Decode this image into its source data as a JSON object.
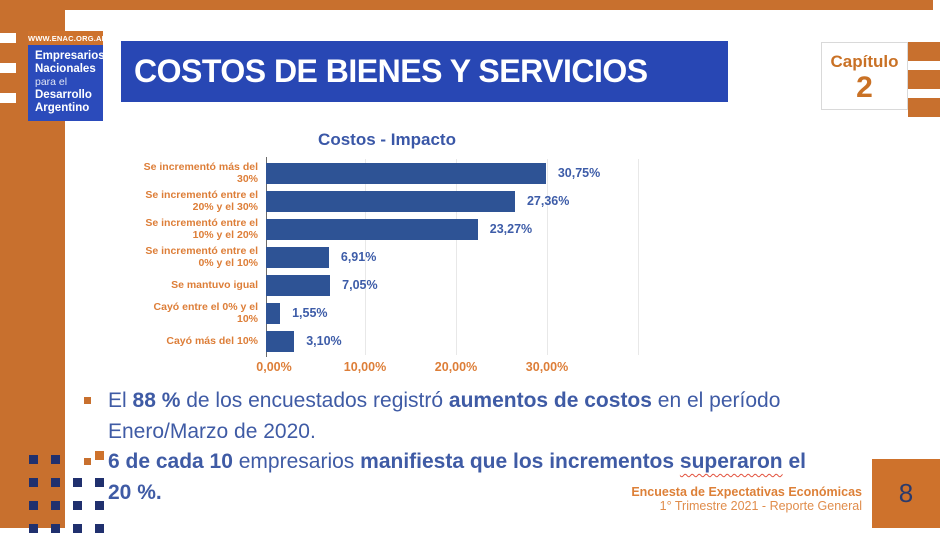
{
  "header": {
    "logo": {
      "url": "WWW.ENAC.ORG.AR",
      "lines": [
        "Empresarios",
        "Nacionales",
        "para el",
        "Desarrollo",
        "Argentino"
      ]
    },
    "title": "COSTOS DE BIENES Y SERVICIOS",
    "chapter": {
      "label": "Capítulo",
      "number": "2"
    }
  },
  "chart_data": {
    "type": "bar",
    "orientation": "horizontal",
    "title": "Costos - Impacto",
    "categories": [
      "Se incrementó más del 30%",
      "Se incrementó entre el 20% y el 30%",
      "Se incrementó entre el 10% y el 20%",
      "Se incrementó entre el 0% y el 10%",
      "Se mantuvo igual",
      "Cayó entre el 0% y el 10%",
      "Cayó más del 10%"
    ],
    "values": [
      30.75,
      27.36,
      23.27,
      6.91,
      7.05,
      1.55,
      3.1
    ],
    "value_labels": [
      "30,75%",
      "27,36%",
      "23,27%",
      "6,91%",
      "7,05%",
      "1,55%",
      "3,10%"
    ],
    "x_ticks": [
      {
        "label": "0,00%",
        "value": 0
      },
      {
        "label": "10,00%",
        "value": 10
      },
      {
        "label": "20,00%",
        "value": 20
      },
      {
        "label": "30,00%",
        "value": 30
      }
    ],
    "xlim": [
      0,
      40
    ],
    "gridline_values": [
      10,
      20,
      30,
      40
    ],
    "legend": "none",
    "grid": "vertical",
    "bar_color": "#2E5395",
    "category_label_color": "#DD7E38",
    "value_label_color": "#3D5CA8"
  },
  "bullets": [
    {
      "lines": [
        [
          {
            "t": "El ",
            "b": 0
          },
          {
            "t": "88 %",
            "b": 1
          },
          {
            "t": " de los encuestados registró ",
            "b": 0
          },
          {
            "t": "aumentos de costos",
            "b": 1
          },
          {
            "t": " en el período",
            "b": 0
          }
        ],
        [
          {
            "t": "Enero/Marzo  de 2020.",
            "b": 0
          }
        ]
      ]
    },
    {
      "lines": [
        [
          {
            "t": "6 de cada 10",
            "b": 1
          },
          {
            "t": " empresarios ",
            "b": 0
          },
          {
            "t": "manifiesta que los incrementos ",
            "b": 1
          },
          {
            "t": "superaron",
            "b": 1,
            "u": 1
          },
          {
            "t": " el",
            "b": 1
          }
        ],
        [
          {
            "t": "20 %.",
            "b": 1
          }
        ]
      ]
    }
  ],
  "footer": {
    "line1": "Encuesta de Expectativas Económicas",
    "line2": "1° Trimestre 2021 - Reporte General",
    "page": "8"
  },
  "colors": {
    "orange": "#C8702E",
    "orange_text": "#DD7E38",
    "title_blue": "#2847B4",
    "logo_blue": "#2B4BBB",
    "bar_blue": "#2E5395",
    "body_text_blue": "#3F5BA5",
    "page_number_navy": "#2B3A6B",
    "deco_navy": "#20306E"
  },
  "decoration": {
    "left_marks_y": [
      33,
      63,
      93
    ],
    "right_bars_y": [
      42,
      70,
      98
    ],
    "squares_pattern": [
      "nn.o",
      "nnnn",
      "nnnn",
      "nnnn"
    ]
  }
}
